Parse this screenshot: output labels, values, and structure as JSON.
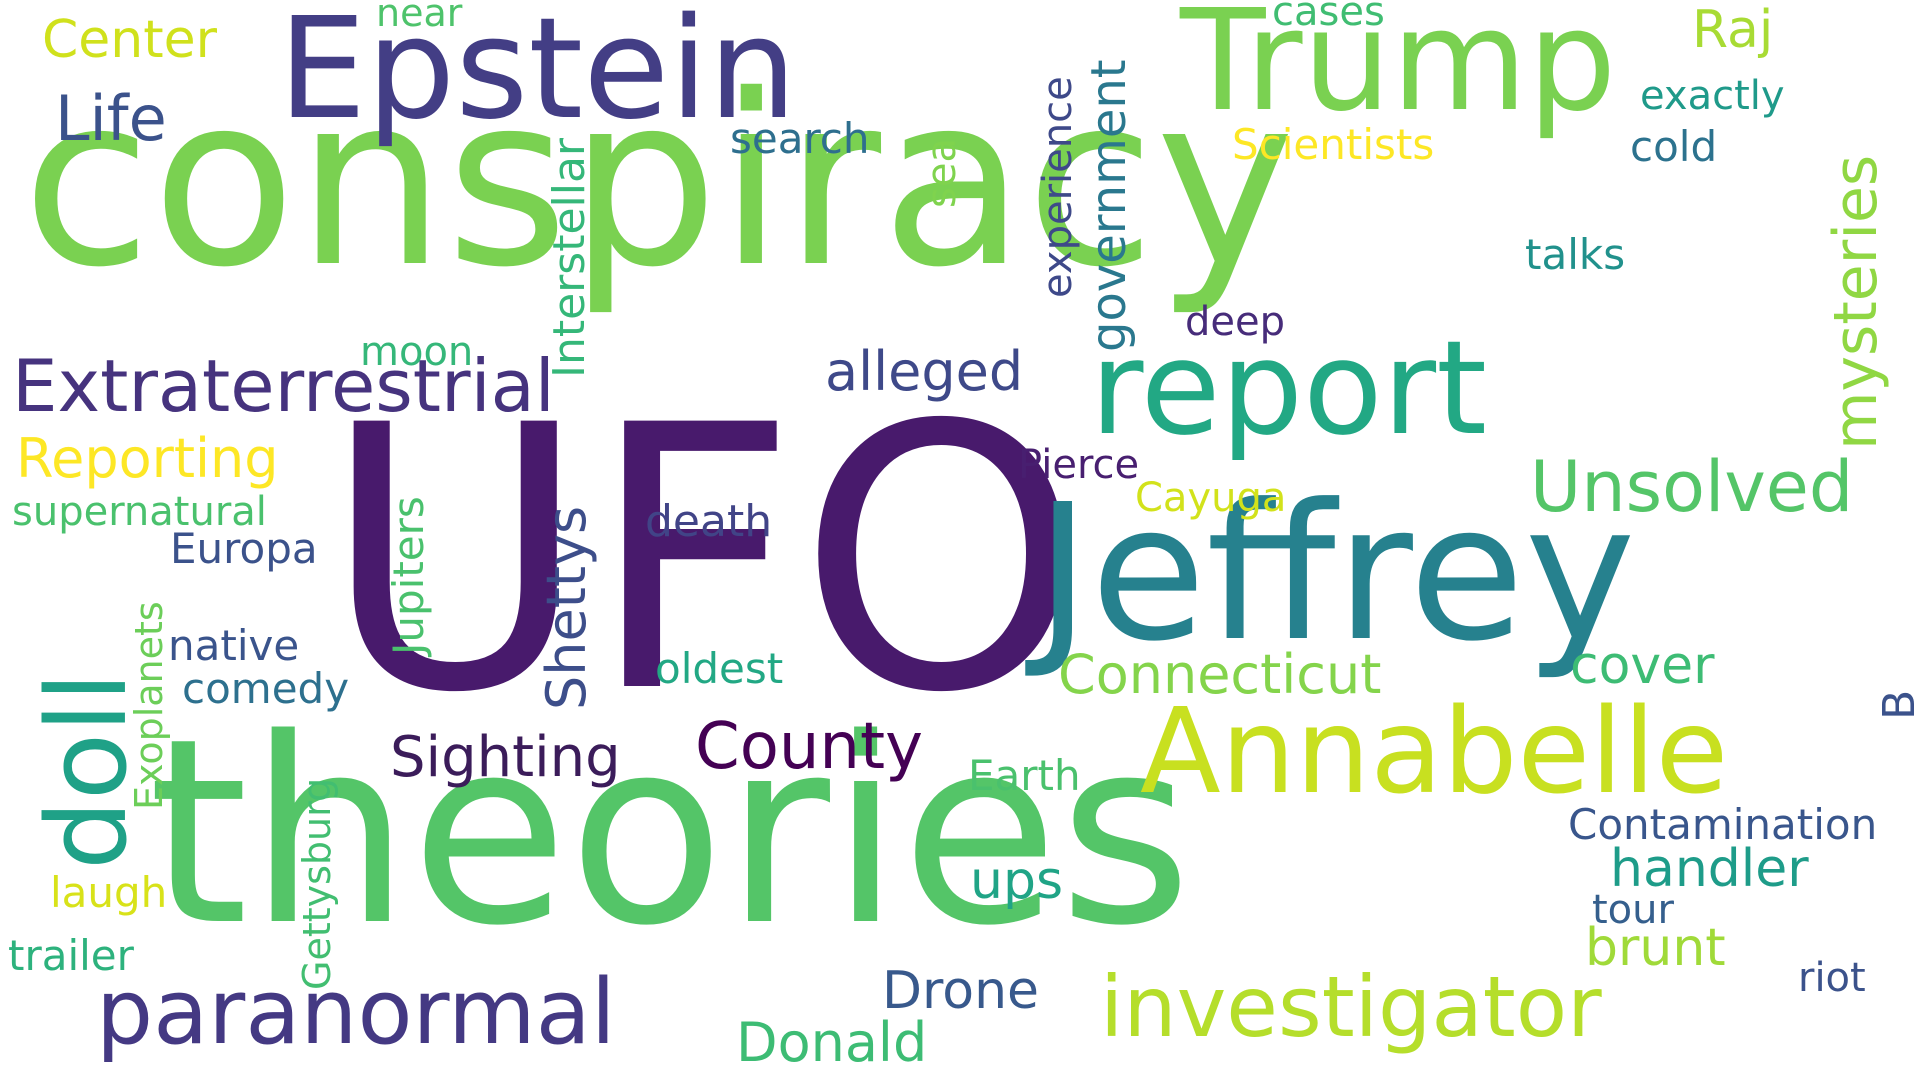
{
  "words": [
    {
      "text": "conspiracy",
      "color": "#7ad151"
    },
    {
      "text": "UFO",
      "color": "#481a6c"
    },
    {
      "text": "theories",
      "color": "#54c568"
    },
    {
      "text": "Jeffrey",
      "color": "#26818e"
    },
    {
      "text": "Epstein",
      "color": "#433e85"
    },
    {
      "text": "Trump",
      "color": "#7ad151"
    },
    {
      "text": "report",
      "color": "#22a884"
    },
    {
      "text": "Annabelle",
      "color": "#c8e020"
    },
    {
      "text": "investigator",
      "color": "#b5de2b"
    },
    {
      "text": "paranormal",
      "color": "#443983"
    },
    {
      "text": "Extraterrestrial",
      "color": "#46337e"
    },
    {
      "text": "doll",
      "color": "#1fa187"
    },
    {
      "text": "mysteries",
      "color": "#90d743"
    },
    {
      "text": "Unsolved",
      "color": "#54c568"
    },
    {
      "text": "County",
      "color": "#440154"
    },
    {
      "text": "Connecticut",
      "color": "#84d44b"
    },
    {
      "text": "Sighting",
      "color": "#3b1c5a"
    },
    {
      "text": "Reporting",
      "color": "#fde725"
    },
    {
      "text": "alleged",
      "color": "#3e4989"
    },
    {
      "text": "Life",
      "color": "#3b528b"
    },
    {
      "text": "Center",
      "color": "#d0e11c"
    },
    {
      "text": "Raj",
      "color": "#a8db34"
    },
    {
      "text": "Shettys",
      "color": "#3d4e8a"
    },
    {
      "text": "Jupiters",
      "color": "#4ac16d"
    },
    {
      "text": "Interstellar",
      "color": "#35b779"
    },
    {
      "text": "government",
      "color": "#2a788e"
    },
    {
      "text": "experience",
      "color": "#3e4989"
    },
    {
      "text": "Exoplanets",
      "color": "#6cce59"
    },
    {
      "text": "Gettysburg",
      "color": "#42be71"
    },
    {
      "text": "Scientists",
      "color": "#fde725"
    },
    {
      "text": "exactly",
      "color": "#1f9a8a"
    },
    {
      "text": "cold",
      "color": "#2c728e"
    },
    {
      "text": "talks",
      "color": "#21918c"
    },
    {
      "text": "search",
      "color": "#2e6f8e"
    },
    {
      "text": "sea",
      "color": "#7fd34e"
    },
    {
      "text": "deep",
      "color": "#472c7a"
    },
    {
      "text": "moon",
      "color": "#35b779"
    },
    {
      "text": "supernatural",
      "color": "#4ac16d"
    },
    {
      "text": "Europa",
      "color": "#3b528b"
    },
    {
      "text": "native",
      "color": "#3a548c"
    },
    {
      "text": "comedy",
      "color": "#2d708e"
    },
    {
      "text": "death",
      "color": "#414487"
    },
    {
      "text": "oldest",
      "color": "#22a884"
    },
    {
      "text": "Pierce",
      "color": "#481f70"
    },
    {
      "text": "Cayuga",
      "color": "#d2e21b"
    },
    {
      "text": "cover",
      "color": "#3dbc74"
    },
    {
      "text": "B",
      "color": "#3b528b"
    },
    {
      "text": "Earth",
      "color": "#4ac16d"
    },
    {
      "text": "Contamination",
      "color": "#39568c"
    },
    {
      "text": "handler",
      "color": "#1e9c89"
    },
    {
      "text": "ups",
      "color": "#20a486"
    },
    {
      "text": "tour",
      "color": "#355f8d"
    },
    {
      "text": "brunt",
      "color": "#a0da39"
    },
    {
      "text": "riot",
      "color": "#3b528b"
    },
    {
      "text": "Drone",
      "color": "#38598c"
    },
    {
      "text": "Donald",
      "color": "#3dbc74"
    },
    {
      "text": "laugh",
      "color": "#d8e219"
    },
    {
      "text": "trailer",
      "color": "#2db27d"
    },
    {
      "text": "near",
      "color": "#4ec36b"
    },
    {
      "text": "cases",
      "color": "#40bd72"
    }
  ]
}
